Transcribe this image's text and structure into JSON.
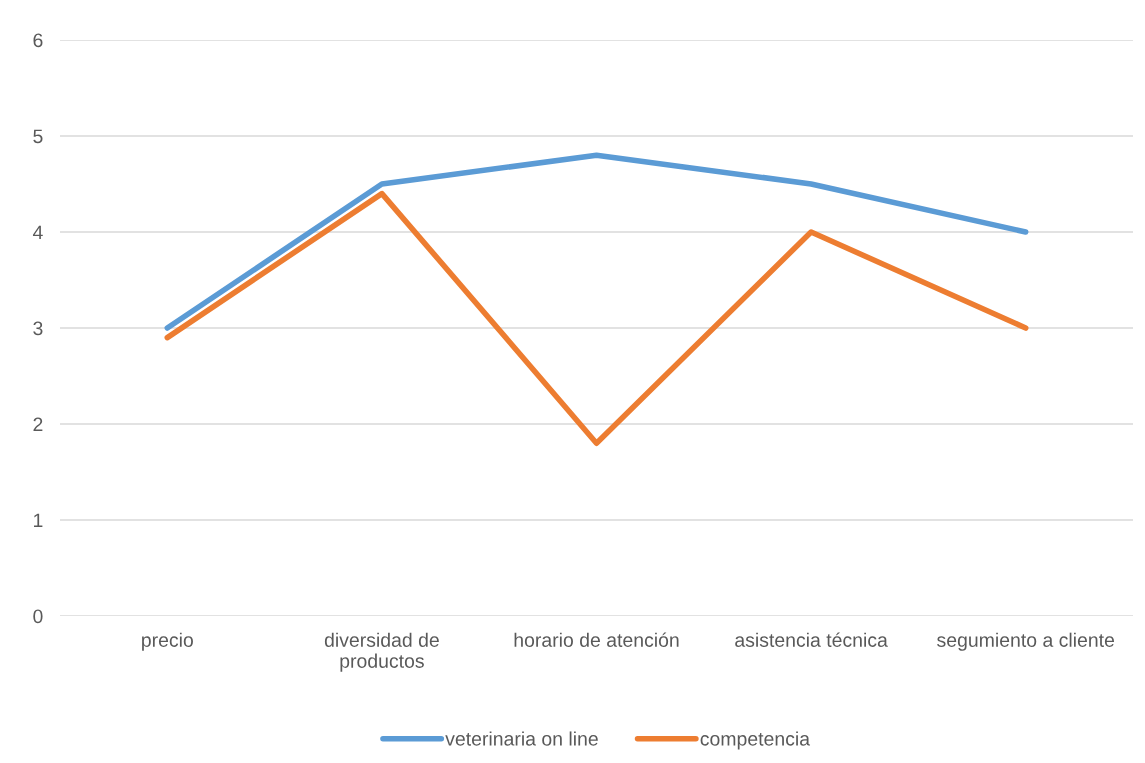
{
  "chart_data": {
    "type": "line",
    "categories": [
      "precio",
      "diversidad de productos",
      "horario de atención",
      "asistencia técnica",
      "segumiento a cliente"
    ],
    "series": [
      {
        "name": "veterinaria on line",
        "color": "#5b9bd5",
        "values": [
          3,
          4.5,
          4.8,
          4.5,
          4
        ]
      },
      {
        "name": "competencia",
        "color": "#ed7d31",
        "values": [
          2.9,
          4.4,
          1.8,
          4,
          3
        ]
      }
    ],
    "ylim": [
      0,
      6
    ],
    "yticks": [
      0,
      1,
      2,
      3,
      4,
      5,
      6
    ],
    "grid": "y",
    "legend": "bottom",
    "marker": "none",
    "line_style": "solid"
  }
}
